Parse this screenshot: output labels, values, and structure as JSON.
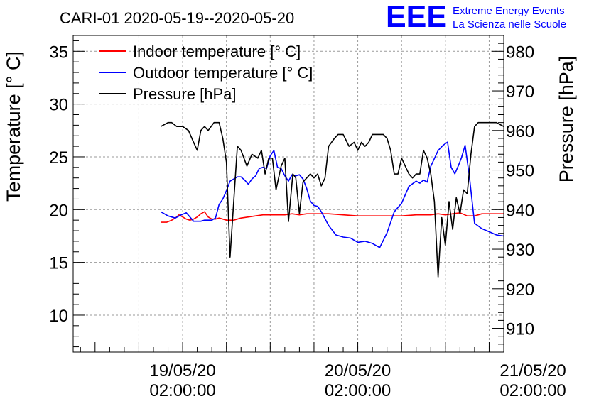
{
  "title": "CARI-01 2020-05-19--2020-05-20",
  "logo": {
    "mark": "EEE",
    "line1": "Extreme Energy Events",
    "line2": "La Scienza nelle Scuole",
    "color": "#0000ff"
  },
  "colors": {
    "indoor": "#ff0000",
    "outdoor": "#0000ff",
    "pressure": "#000000",
    "grid": "#9a9a9a"
  },
  "chart_data": {
    "type": "line",
    "title": "CARI-01 2020-05-19--2020-05-20",
    "xlabel": "",
    "ylabel_left": "Temperature [° C]",
    "ylabel_right": "Pressure [hPa]",
    "x_unit": "hours since 2020-05-19 00:00",
    "xlim": [
      -13.0,
      46.0
    ],
    "ylim_left": [
      6.5,
      36.5
    ],
    "ylim_right": [
      904,
      984
    ],
    "x_ticks": [
      {
        "x": 2,
        "label_date": "19/05/20",
        "label_time": "02:00:00"
      },
      {
        "x": 26,
        "label_date": "20/05/20",
        "label_time": "02:00:00"
      },
      {
        "x": 50,
        "label_date": "21/05/20",
        "label_time": "02:00:00"
      }
    ],
    "left_ticks": [
      "10",
      "15",
      "20",
      "25",
      "30",
      "35"
    ],
    "right_ticks": [
      "910",
      "920",
      "930",
      "940",
      "950",
      "960",
      "970",
      "980"
    ],
    "grid": true,
    "legend_position": "top-left",
    "series": [
      {
        "name": "Indoor temperature [° C]",
        "axis": "left",
        "color": "#ff0000",
        "x": [
          -1.0,
          -0.2,
          0.5,
          1.0,
          1.5,
          2.0,
          2.5,
          3.0,
          3.5,
          4.0,
          4.5,
          5.0,
          5.5,
          6.0,
          6.5,
          7.0,
          7.5,
          8.0,
          9.0,
          10.0,
          11.0,
          12.0,
          13.0,
          14.0,
          15.0,
          16.0,
          17.0,
          18.0,
          19.0,
          20.0,
          22.0,
          24.0,
          26.0,
          28.0,
          30.0,
          32.0,
          34.0,
          36.0,
          37.0,
          38.0,
          39.0,
          40.0,
          41.0,
          42.0,
          43.0,
          44.0,
          45.0,
          46.0
        ],
        "values": [
          18.8,
          18.8,
          19.0,
          19.2,
          19.5,
          19.3,
          19.1,
          19.0,
          19.1,
          19.3,
          19.6,
          19.8,
          19.3,
          19.1,
          19.1,
          19.2,
          19.1,
          19.0,
          19.0,
          19.2,
          19.3,
          19.4,
          19.5,
          19.5,
          19.5,
          19.5,
          19.6,
          19.5,
          19.6,
          19.6,
          19.6,
          19.5,
          19.4,
          19.4,
          19.4,
          19.4,
          19.5,
          19.5,
          19.6,
          19.5,
          19.6,
          19.7,
          19.4,
          19.4,
          19.6,
          19.6,
          19.6,
          19.6
        ]
      },
      {
        "name": "Outdoor temperature [° C]",
        "axis": "left",
        "color": "#0000ff",
        "x": [
          -1.0,
          0.0,
          1.0,
          1.8,
          2.5,
          3.0,
          3.5,
          4.0,
          4.5,
          5.0,
          5.5,
          6.0,
          6.5,
          7.0,
          7.5,
          8.0,
          8.5,
          9.0,
          9.5,
          10.0,
          10.5,
          11.0,
          11.5,
          12.0,
          12.5,
          13.0,
          13.5,
          14.0,
          14.5,
          15.0,
          15.5,
          16.0,
          16.5,
          17.0,
          17.5,
          18.0,
          18.5,
          19.0,
          19.5,
          20.0,
          20.5,
          21.0,
          22.0,
          23.0,
          24.0,
          25.0,
          26.0,
          27.0,
          28.0,
          29.0,
          30.0,
          31.0,
          32.0,
          33.0,
          34.0,
          34.5,
          35.0,
          35.5,
          36.0,
          37.0,
          37.7,
          38.3,
          38.8,
          39.3,
          39.8,
          40.2,
          40.7,
          41.3,
          42.0,
          43.0,
          44.0,
          45.0,
          46.0
        ],
        "values": [
          19.8,
          19.4,
          19.2,
          19.5,
          19.7,
          19.3,
          18.9,
          18.9,
          18.9,
          19.0,
          19.0,
          19.0,
          19.2,
          20.5,
          21.0,
          21.8,
          22.7,
          22.9,
          23.1,
          23.1,
          22.8,
          22.4,
          22.9,
          23.2,
          23.9,
          24.0,
          23.9,
          25.1,
          25.6,
          24.0,
          23.9,
          23.2,
          22.7,
          23.3,
          23.2,
          23.3,
          22.9,
          22.0,
          20.8,
          20.4,
          20.3,
          19.8,
          18.5,
          17.6,
          17.4,
          17.3,
          16.9,
          17.0,
          16.8,
          16.4,
          17.8,
          19.8,
          20.6,
          22.2,
          22.7,
          22.5,
          22.8,
          22.6,
          24.1,
          25.6,
          26.1,
          26.4,
          24.0,
          23.4,
          24.2,
          24.9,
          26.1,
          23.1,
          18.7,
          18.2,
          17.9,
          17.6,
          17.5
        ]
      },
      {
        "name": "Pressure [hPa]",
        "axis": "right",
        "color": "#000000",
        "x": [
          -1.0,
          0.0,
          0.5,
          1.2,
          2.0,
          2.8,
          3.5,
          4.0,
          4.5,
          5.0,
          5.5,
          6.3,
          7.0,
          7.5,
          8.0,
          8.5,
          9.5,
          10.0,
          10.8,
          11.5,
          12.3,
          12.8,
          13.3,
          13.8,
          14.3,
          14.8,
          15.5,
          16.0,
          16.5,
          17.1,
          17.5,
          18.0,
          18.5,
          19.0,
          19.5,
          20.0,
          20.5,
          21.0,
          21.5,
          22.0,
          22.8,
          23.3,
          24.0,
          24.8,
          25.5,
          26.0,
          26.5,
          27.0,
          27.5,
          28.0,
          28.5,
          29.0,
          29.5,
          30.0,
          30.5,
          31.0,
          31.5,
          32.0,
          33.0,
          33.5,
          34.0,
          34.5,
          35.0,
          35.5,
          36.0,
          36.5,
          37.0,
          37.5,
          38.0,
          38.5,
          39.0,
          39.5,
          40.0,
          40.5,
          41.0,
          41.5,
          42.0,
          42.5,
          43.0,
          43.5,
          44.0,
          45.0,
          46.0
        ],
        "values": [
          961,
          962,
          962,
          961,
          961,
          960,
          957,
          955,
          960,
          961,
          960,
          962,
          962,
          958,
          952,
          928,
          956,
          955,
          951,
          954,
          953,
          955,
          949,
          953,
          953,
          945,
          951,
          953,
          937,
          949,
          948,
          939,
          947,
          948,
          949,
          948,
          949,
          946,
          948,
          956,
          958,
          959,
          959,
          956,
          957,
          955,
          957,
          956,
          957,
          959,
          959,
          959,
          959,
          958,
          955,
          949,
          949,
          953,
          949,
          948,
          949,
          949,
          955,
          953,
          949,
          942,
          923,
          938,
          931,
          942,
          935,
          943,
          939,
          945,
          944,
          954,
          961,
          962,
          962,
          962,
          962,
          962,
          961
        ]
      }
    ]
  }
}
